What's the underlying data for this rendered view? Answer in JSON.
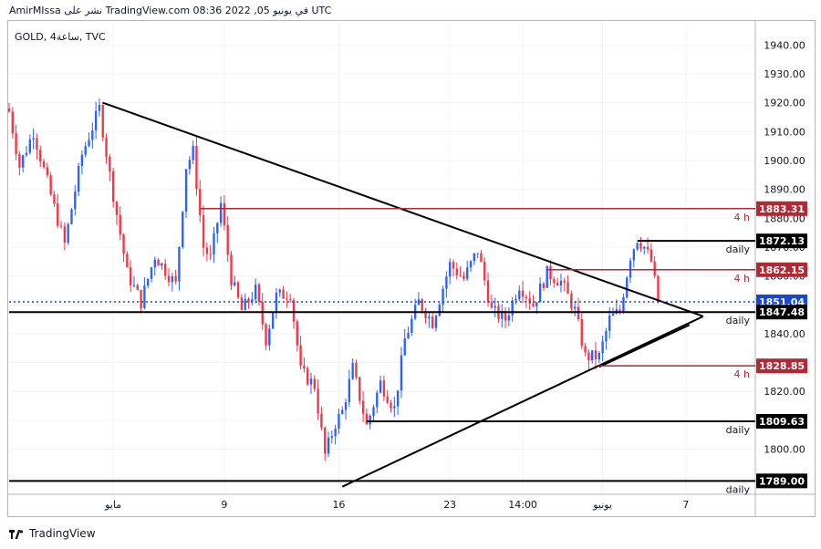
{
  "header": {
    "caption": "AmirMIssa نشر على TradingView.com في يونيو 05, 2022 08:36 UTC"
  },
  "symbol_label": "GOLD, 4ساعة, TVC",
  "footer": {
    "brand": "TradingView",
    "logo_icon": "tradingview-logo-icon"
  },
  "colors": {
    "bull": "#2962ff",
    "bear": "#f23645",
    "red_level": "#b22833",
    "black_level": "#000000",
    "current": "#1848cc"
  },
  "chart_data": {
    "type": "candlestick",
    "title": "",
    "xlabel": "",
    "ylabel": "",
    "ylim": [
      1785,
      1948
    ],
    "grid": true,
    "y_ticks": [
      "1940.00",
      "1930.00",
      "1920.00",
      "1910.00",
      "1900.00",
      "1890.00",
      "1880.00",
      "1870.00",
      "1860.00",
      "1850.00",
      "1840.00",
      "1830.00",
      "1820.00",
      "1810.00",
      "1800.00",
      "1790.00"
    ],
    "x_ticks": [
      {
        "label": "مايو",
        "bar": 30
      },
      {
        "label": "9",
        "bar": 62
      },
      {
        "label": "16",
        "bar": 95
      },
      {
        "label": "23",
        "bar": 127
      },
      {
        "label": "14:00",
        "bar": 148
      },
      {
        "label": "يونيو",
        "bar": 171
      },
      {
        "label": "7",
        "bar": 195
      }
    ],
    "x_extent": [
      0,
      215
    ],
    "candle_anchors": [
      [
        0,
        1917
      ],
      [
        3,
        1898
      ],
      [
        7,
        1910
      ],
      [
        12,
        1888
      ],
      [
        16,
        1871
      ],
      [
        21,
        1902
      ],
      [
        26,
        1918
      ],
      [
        29,
        1895
      ],
      [
        34,
        1861
      ],
      [
        38,
        1851
      ],
      [
        42,
        1867
      ],
      [
        48,
        1857
      ],
      [
        51,
        1898
      ],
      [
        53,
        1903
      ],
      [
        56,
        1870
      ],
      [
        58,
        1866
      ],
      [
        61,
        1885
      ],
      [
        64,
        1859
      ],
      [
        67,
        1848
      ],
      [
        71,
        1855
      ],
      [
        74,
        1838
      ],
      [
        77,
        1853
      ],
      [
        81,
        1854
      ],
      [
        84,
        1827
      ],
      [
        88,
        1822
      ],
      [
        91,
        1798
      ],
      [
        94,
        1809
      ],
      [
        96,
        1813
      ],
      [
        99,
        1828
      ],
      [
        103,
        1808
      ],
      [
        107,
        1823
      ],
      [
        111,
        1814
      ],
      [
        114,
        1838
      ],
      [
        118,
        1851
      ],
      [
        122,
        1844
      ],
      [
        127,
        1864
      ],
      [
        131,
        1859
      ],
      [
        135,
        1869
      ],
      [
        139,
        1848
      ],
      [
        143,
        1845
      ],
      [
        147,
        1857
      ],
      [
        151,
        1850
      ],
      [
        155,
        1861
      ],
      [
        159,
        1858
      ],
      [
        163,
        1848
      ],
      [
        166,
        1832
      ],
      [
        170,
        1832
      ],
      [
        173,
        1845
      ],
      [
        176,
        1848
      ],
      [
        179,
        1867
      ],
      [
        181,
        1873
      ],
      [
        183,
        1870
      ],
      [
        185,
        1865
      ],
      [
        187,
        1851
      ]
    ],
    "levels": [
      {
        "price": 1883.31,
        "label": "1883.31",
        "tag": "4 h",
        "color": "red",
        "start_bar": 55
      },
      {
        "price": 1872.13,
        "label": "1872.13",
        "tag": "daily",
        "color": "black",
        "start_bar": 181
      },
      {
        "price": 1862.15,
        "label": "1862.15",
        "tag": "4 h",
        "color": "red",
        "start_bar": 155
      },
      {
        "price": 1851.04,
        "label": "1851.04",
        "tag": "",
        "color": "current",
        "start_bar": 0
      },
      {
        "price": 1847.48,
        "label": "1847.48",
        "tag": "daily",
        "color": "black",
        "start_bar": 0
      },
      {
        "price": 1828.85,
        "label": "1828.85",
        "tag": "4 h",
        "color": "red",
        "start_bar": 170
      },
      {
        "price": 1809.63,
        "label": "1809.63",
        "tag": "daily",
        "color": "black",
        "start_bar": 103
      },
      {
        "price": 1789.0,
        "label": "1789.00",
        "tag": "daily",
        "color": "black",
        "start_bar": 0
      }
    ],
    "trendlines": [
      {
        "from": {
          "bar": 27,
          "price": 1920
        },
        "to": {
          "bar": 200,
          "price": 1846
        }
      },
      {
        "from": {
          "bar": 96,
          "price": 1787
        },
        "to": {
          "bar": 200,
          "price": 1846
        }
      },
      {
        "from": {
          "bar": 170,
          "price": 1828.5
        },
        "to": {
          "bar": 196,
          "price": 1843
        }
      }
    ]
  }
}
